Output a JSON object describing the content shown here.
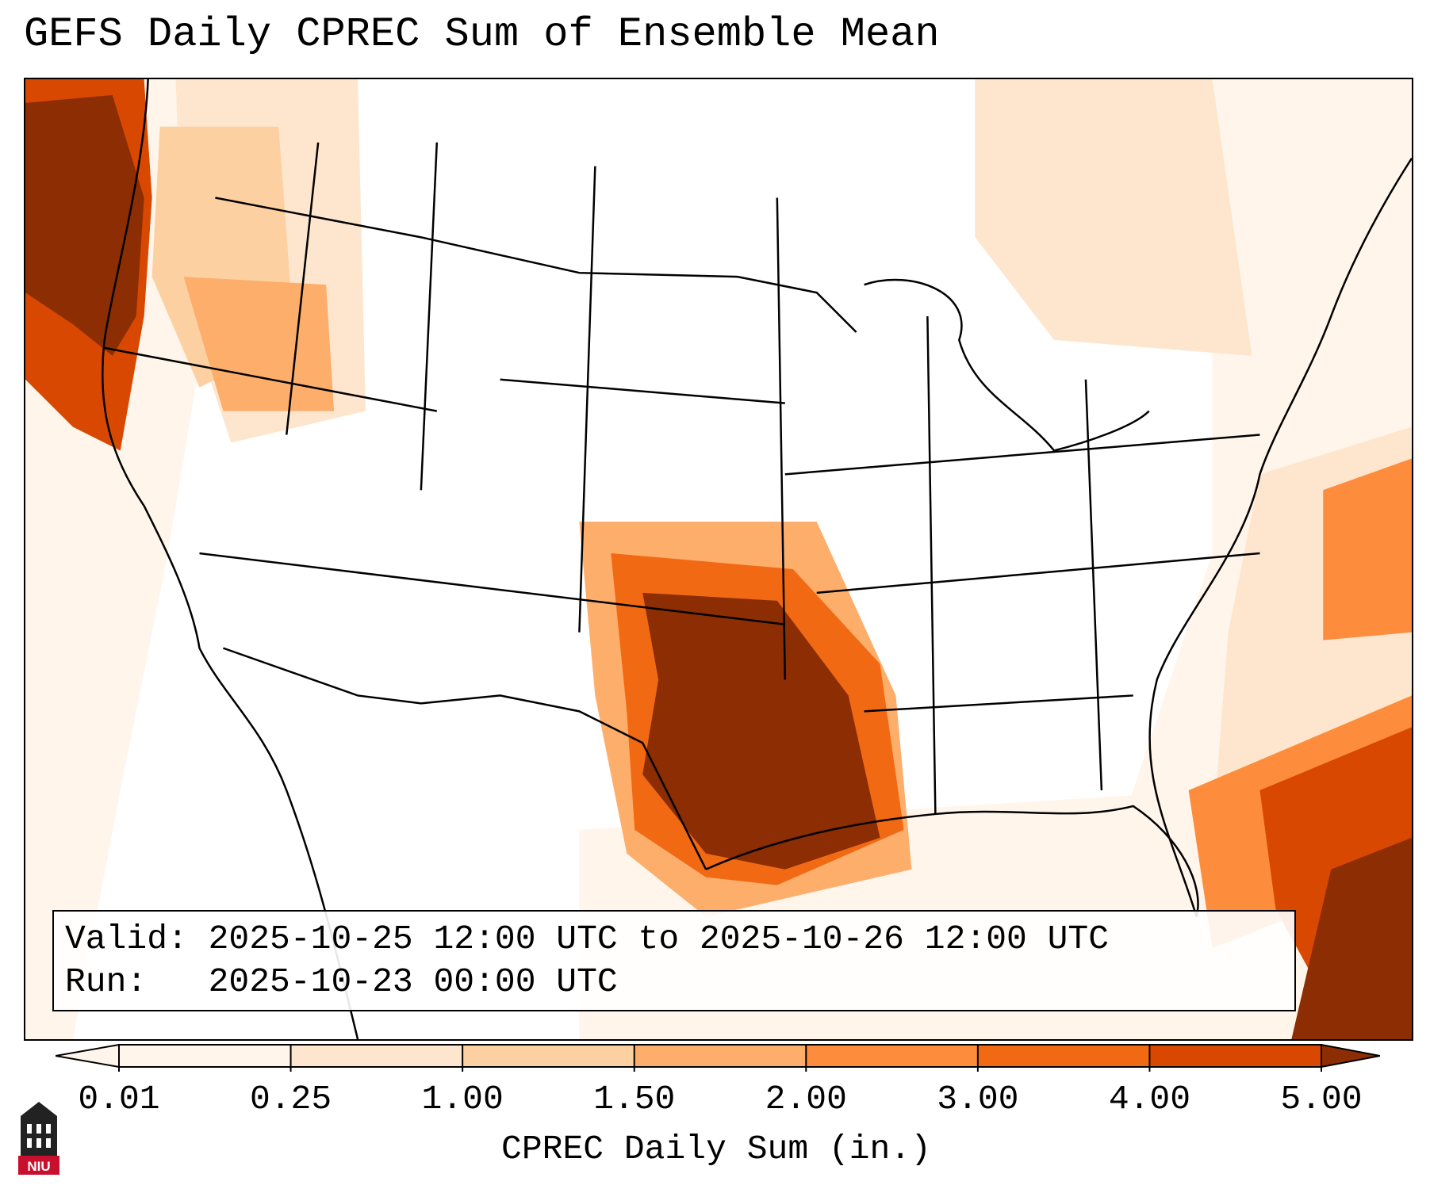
{
  "title": "GEFS Daily CPREC Sum of Ensemble Mean",
  "info": {
    "valid_line": "Valid: 2025-10-25 12:00 UTC to 2025-10-26 12:00 UTC",
    "run_line": "Run:   2025-10-23 00:00 UTC"
  },
  "colorbar": {
    "label": "CPREC Daily Sum (in.)",
    "ticks": [
      "0.01",
      "0.25",
      "1.00",
      "1.50",
      "2.00",
      "3.00",
      "4.00",
      "5.00"
    ],
    "colors": [
      "#fff5eb",
      "#fee6ce",
      "#fdd0a2",
      "#fdae6b",
      "#fd8d3c",
      "#f16913",
      "#d94801",
      "#8c2d04"
    ]
  },
  "logo": {
    "text": "NIU",
    "icon": "university-tower-icon",
    "colors": {
      "dark": "#222222",
      "red": "#c8102e"
    }
  },
  "map": {
    "colors": {
      "land_outline": "#000000",
      "background": "#ffffff",
      "max_precip": "#8c2d04"
    }
  }
}
